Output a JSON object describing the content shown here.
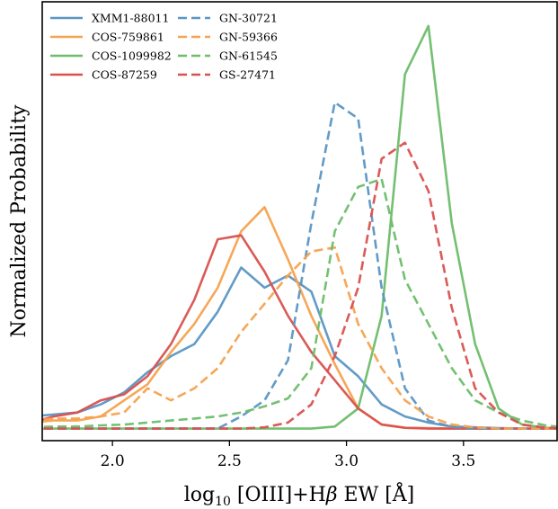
{
  "chart_data": {
    "type": "line",
    "title": "",
    "xlabel": {
      "main": "log",
      "sub": "10",
      "rest": " [OIII]+H",
      "beta": "β",
      "tail": " EW [Å]"
    },
    "ylabel": "Normalized Probability",
    "xlim": [
      1.7,
      3.9
    ],
    "ylim": [
      -0.03,
      1.06
    ],
    "xticks": [
      2.0,
      2.5,
      3.0,
      3.5
    ],
    "xtick_labels": [
      "2.0",
      "2.5",
      "3.0",
      "3.5"
    ],
    "yticks_shown": false,
    "grid": false,
    "legend": {
      "position": "top-left",
      "columns": 2
    },
    "series": [
      {
        "name": "XMM1-88011",
        "color": "#5a96c4",
        "dash": "solid",
        "x": [
          1.65,
          1.75,
          1.85,
          1.95,
          2.05,
          2.15,
          2.25,
          2.35,
          2.45,
          2.55,
          2.65,
          2.75,
          2.85,
          2.95,
          3.05,
          3.15,
          3.25,
          3.35,
          3.45,
          3.55,
          3.65,
          3.75,
          3.85,
          3.95
        ],
        "y": [
          0.03,
          0.035,
          0.04,
          0.06,
          0.09,
          0.14,
          0.18,
          0.21,
          0.29,
          0.4,
          0.35,
          0.38,
          0.34,
          0.18,
          0.13,
          0.06,
          0.03,
          0.015,
          0.005,
          0.003,
          0.001,
          0,
          0,
          0
        ]
      },
      {
        "name": "COS-759861",
        "color": "#f6a24e",
        "dash": "solid",
        "x": [
          1.65,
          1.75,
          1.85,
          1.95,
          2.05,
          2.15,
          2.25,
          2.35,
          2.45,
          2.55,
          2.65,
          2.75,
          2.85,
          2.95,
          3.05,
          3.15,
          3.25,
          3.35,
          3.45,
          3.55,
          3.65,
          3.75,
          3.85,
          3.95
        ],
        "y": [
          0.015,
          0.02,
          0.02,
          0.03,
          0.07,
          0.11,
          0.19,
          0.26,
          0.35,
          0.49,
          0.55,
          0.42,
          0.28,
          0.16,
          0.05,
          0.01,
          0.002,
          0.001,
          0,
          0,
          0,
          0,
          0,
          0
        ]
      },
      {
        "name": "COS-1099982",
        "color": "#6dbd6a",
        "dash": "solid",
        "x": [
          1.65,
          1.75,
          1.85,
          1.95,
          2.05,
          2.15,
          2.25,
          2.35,
          2.45,
          2.55,
          2.65,
          2.75,
          2.85,
          2.95,
          3.05,
          3.15,
          3.25,
          3.35,
          3.45,
          3.55,
          3.65,
          3.75,
          3.85,
          3.95
        ],
        "y": [
          0,
          0,
          0,
          0,
          0,
          0,
          0,
          0,
          0,
          0,
          0,
          0,
          0,
          0.005,
          0.05,
          0.28,
          0.88,
          1.0,
          0.51,
          0.21,
          0.05,
          0.01,
          0.002,
          0
        ]
      },
      {
        "name": "COS-87259",
        "color": "#d9514f",
        "dash": "solid",
        "x": [
          1.65,
          1.75,
          1.85,
          1.95,
          2.05,
          2.15,
          2.25,
          2.35,
          2.45,
          2.55,
          2.65,
          2.75,
          2.85,
          2.95,
          3.05,
          3.15,
          3.25,
          3.35,
          3.45,
          3.55,
          3.65,
          3.75,
          3.85,
          3.95
        ],
        "y": [
          0.015,
          0.03,
          0.04,
          0.07,
          0.085,
          0.13,
          0.21,
          0.32,
          0.47,
          0.48,
          0.39,
          0.28,
          0.19,
          0.12,
          0.05,
          0.01,
          0.002,
          0,
          0,
          0,
          0,
          0,
          0,
          0
        ]
      },
      {
        "name": "GN-30721",
        "color": "#5a96c4",
        "dash": "dashed",
        "x": [
          1.65,
          1.75,
          1.85,
          1.95,
          2.05,
          2.15,
          2.25,
          2.35,
          2.45,
          2.55,
          2.65,
          2.75,
          2.85,
          2.95,
          3.05,
          3.15,
          3.25,
          3.35,
          3.45,
          3.55,
          3.65,
          3.75,
          3.85,
          3.95
        ],
        "y": [
          0,
          0,
          0,
          0,
          0,
          0,
          0,
          0,
          0,
          0.03,
          0.07,
          0.17,
          0.51,
          0.81,
          0.77,
          0.35,
          0.1,
          0.02,
          0.004,
          0,
          0,
          0,
          0,
          0
        ]
      },
      {
        "name": "GN-59366",
        "color": "#f6a24e",
        "dash": "dashed",
        "x": [
          1.65,
          1.75,
          1.85,
          1.95,
          2.05,
          2.15,
          2.25,
          2.35,
          2.45,
          2.55,
          2.65,
          2.75,
          2.85,
          2.95,
          3.05,
          3.15,
          3.25,
          3.35,
          3.45,
          3.55,
          3.65,
          3.75,
          3.85,
          3.95
        ],
        "y": [
          0.02,
          0.025,
          0.025,
          0.03,
          0.04,
          0.1,
          0.07,
          0.1,
          0.15,
          0.24,
          0.31,
          0.38,
          0.44,
          0.45,
          0.26,
          0.15,
          0.07,
          0.03,
          0.01,
          0.003,
          0,
          0,
          0,
          0
        ]
      },
      {
        "name": "GN-61545",
        "color": "#6dbd6a",
        "dash": "dashed",
        "x": [
          1.65,
          1.75,
          1.85,
          1.95,
          2.05,
          2.15,
          2.25,
          2.35,
          2.45,
          2.55,
          2.65,
          2.75,
          2.85,
          2.95,
          3.05,
          3.15,
          3.25,
          3.35,
          3.45,
          3.55,
          3.65,
          3.75,
          3.85,
          3.95
        ],
        "y": [
          0.003,
          0.005,
          0.005,
          0.008,
          0.01,
          0.015,
          0.02,
          0.025,
          0.03,
          0.04,
          0.055,
          0.075,
          0.15,
          0.49,
          0.6,
          0.62,
          0.37,
          0.26,
          0.15,
          0.07,
          0.04,
          0.02,
          0.008,
          0.002
        ]
      },
      {
        "name": "GS-27471",
        "color": "#d9514f",
        "dash": "dashed",
        "x": [
          1.65,
          1.75,
          1.85,
          1.95,
          2.05,
          2.15,
          2.25,
          2.35,
          2.45,
          2.55,
          2.65,
          2.75,
          2.85,
          2.95,
          3.05,
          3.15,
          3.25,
          3.35,
          3.45,
          3.55,
          3.65,
          3.75,
          3.85,
          3.95
        ],
        "y": [
          0,
          0,
          0,
          0,
          0,
          0,
          0,
          0,
          0,
          0,
          0.003,
          0.015,
          0.06,
          0.18,
          0.35,
          0.67,
          0.71,
          0.59,
          0.3,
          0.1,
          0.04,
          0.01,
          0.002,
          0
        ]
      }
    ]
  }
}
